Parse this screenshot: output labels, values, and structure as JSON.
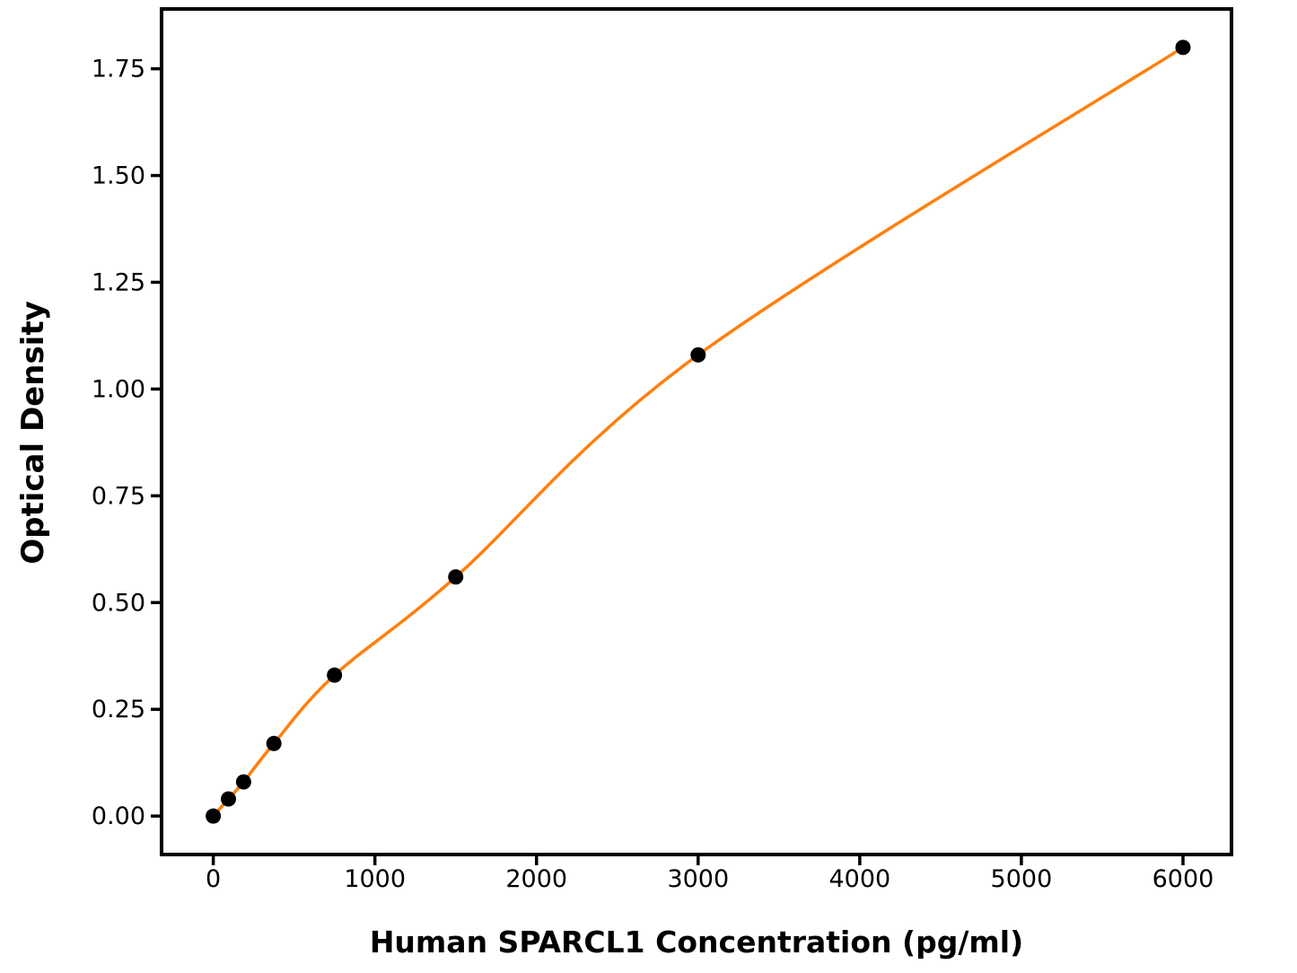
{
  "figure": {
    "background_color": "#ffffff"
  },
  "chart_data": {
    "type": "scatter",
    "title": "",
    "xlabel": "Human SPARCL1 Concentration (pg/ml)",
    "ylabel": "Optical Density",
    "x_tick_labels": [
      "0",
      "1000",
      "2000",
      "3000",
      "4000",
      "5000",
      "6000"
    ],
    "x_tick_values": [
      0,
      1000,
      2000,
      3000,
      4000,
      5000,
      6000
    ],
    "y_tick_labels": [
      "0.00",
      "0.25",
      "0.50",
      "0.75",
      "1.00",
      "1.25",
      "1.50",
      "1.75"
    ],
    "y_tick_values": [
      0,
      0.25,
      0.5,
      0.75,
      1.0,
      1.25,
      1.5,
      1.75
    ],
    "xlim": [
      -320,
      6300
    ],
    "ylim": [
      -0.09,
      1.89
    ],
    "grid": false,
    "legend": "none",
    "axis_color": "#000000",
    "tick_label_color": "#000000",
    "series": [
      {
        "name": "fit-curve",
        "kind": "line",
        "color": "#ff7f0e",
        "x": [
          0,
          93.8,
          187.5,
          375,
          750,
          1500,
          3000,
          6000
        ],
        "y": [
          0.0,
          0.04,
          0.08,
          0.17,
          0.33,
          0.56,
          1.08,
          1.8
        ]
      },
      {
        "name": "standard-points",
        "kind": "scatter",
        "color": "#000000",
        "x": [
          0,
          93.8,
          187.5,
          375,
          750,
          1500,
          3000,
          6000
        ],
        "y": [
          0.0,
          0.04,
          0.08,
          0.17,
          0.33,
          0.56,
          1.08,
          1.8
        ]
      }
    ]
  }
}
